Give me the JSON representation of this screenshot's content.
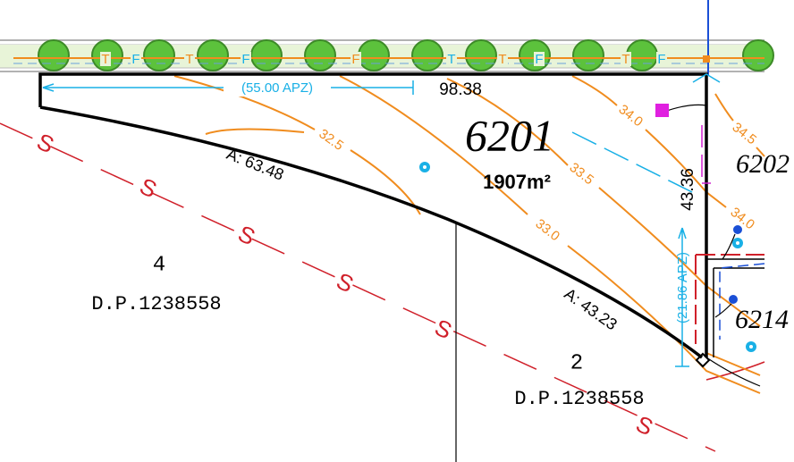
{
  "lots": [
    {
      "number": "6201",
      "area": "1907m²"
    },
    {
      "number": "6202"
    },
    {
      "number": "6214"
    }
  ],
  "parcels": [
    {
      "lot": "4",
      "plan": "D.P.1238558"
    },
    {
      "lot": "2",
      "plan": "D.P.1238558"
    }
  ],
  "dimensions": {
    "top_apz": "(55.00 APZ)",
    "top": "98.38",
    "right": "43.36",
    "right_apz": "(21.86 APZ)"
  },
  "arcs": [
    "A: 63.48",
    "A: 43.23"
  ],
  "contours": [
    "32.5",
    "33.0",
    "33.5",
    "34.0",
    "34.0",
    "34.5"
  ],
  "sewer_labels": [
    "S",
    "S",
    "S",
    "S",
    "S",
    "S"
  ],
  "service_labels": [
    "T",
    "F",
    "T",
    "F",
    "F",
    "T",
    "T",
    "F",
    "T",
    "F"
  ]
}
